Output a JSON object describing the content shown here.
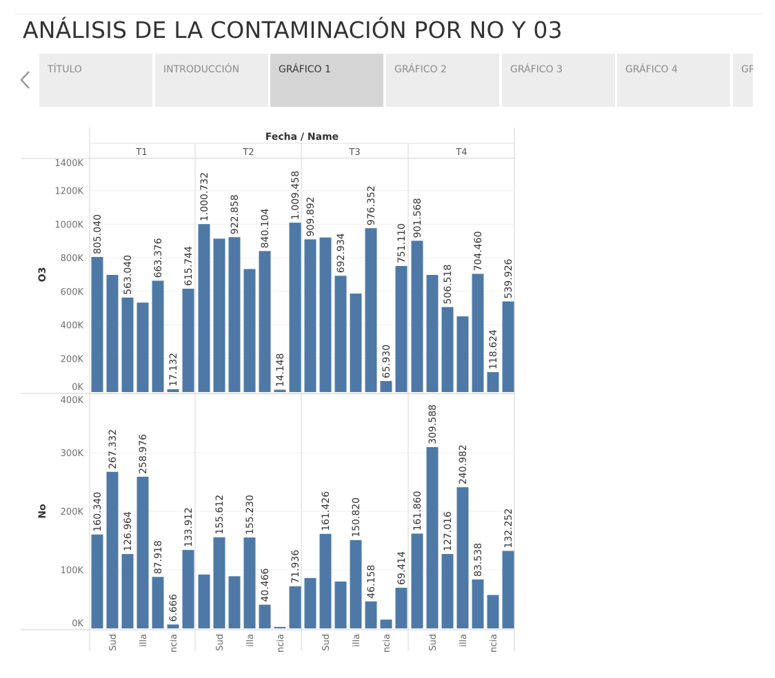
{
  "page": {
    "title": "ANÁLISIS DE LA CONTAMINACIÓN POR NO Y 03"
  },
  "nav": {
    "tabs": [
      {
        "label": "TÍTULO",
        "active": false
      },
      {
        "label": "INTRODUCCIÓN",
        "active": false
      },
      {
        "label": "GRÁFICO 1",
        "active": true
      },
      {
        "label": "GRÁFICO 2",
        "active": false
      },
      {
        "label": "GRÁFICO 3",
        "active": false
      },
      {
        "label": "GRÁFICO 4",
        "active": false
      },
      {
        "label": "GR",
        "active": false
      }
    ]
  },
  "chart_data": {
    "type": "bar",
    "column_header": "Fecha / Name",
    "columns": [
      "T1",
      "T2",
      "T3",
      "T4"
    ],
    "x_tick_labels": [
      "Sud",
      "illa",
      "ncia"
    ],
    "rows": [
      {
        "name": "O3",
        "axis_range": [
          0,
          1400000
        ],
        "ticks": [
          {
            "value": 0,
            "label": "0K"
          },
          {
            "value": 200000,
            "label": "200K"
          },
          {
            "value": 400000,
            "label": "400K"
          },
          {
            "value": 600000,
            "label": "600K"
          },
          {
            "value": 800000,
            "label": "800K"
          },
          {
            "value": 1000000,
            "label": "1000K"
          },
          {
            "value": 1200000,
            "label": "1200K"
          },
          {
            "value": 1400000,
            "label": "1400K"
          }
        ],
        "values": [
          [
            805040,
            698000,
            563040,
            533000,
            663376,
            17132,
            615744
          ],
          [
            1000732,
            914000,
            922858,
            733000,
            840104,
            14148,
            1009458
          ],
          [
            909892,
            921000,
            692934,
            587000,
            976352,
            65930,
            751110
          ],
          [
            901568,
            698000,
            506518,
            451000,
            704460,
            118624,
            539926
          ]
        ],
        "labels": [
          [
            "805.040",
            "",
            "563.040",
            "",
            "663.376",
            "17.132",
            "615.744"
          ],
          [
            "1.000.732",
            "",
            "922.858",
            "",
            "840.104",
            "14.148",
            "1.009.458"
          ],
          [
            "909.892",
            "",
            "692.934",
            "",
            "976.352",
            "65.930",
            "751.110"
          ],
          [
            "901.568",
            "",
            "506.518",
            "",
            "704.460",
            "118.624",
            "539.926"
          ]
        ]
      },
      {
        "name": "No",
        "axis_range": [
          0,
          400000
        ],
        "ticks": [
          {
            "value": 0,
            "label": "0K"
          },
          {
            "value": 100000,
            "label": "100K"
          },
          {
            "value": 200000,
            "label": "200K"
          },
          {
            "value": 300000,
            "label": "300K"
          },
          {
            "value": 400000,
            "label": "400K"
          }
        ],
        "values": [
          [
            160340,
            267332,
            126964,
            258976,
            87918,
            6666,
            133912
          ],
          [
            92000,
            155612,
            89000,
            155230,
            40466,
            2500,
            71936
          ],
          [
            86000,
            161426,
            80000,
            150820,
            46158,
            15000,
            69414
          ],
          [
            161860,
            309588,
            127016,
            240982,
            83538,
            57000,
            132252
          ]
        ],
        "labels": [
          [
            "160.340",
            "267.332",
            "126.964",
            "258.976",
            "87.918",
            "6.666",
            "133.912"
          ],
          [
            "",
            "155.612",
            "",
            "155.230",
            "40.466",
            "",
            "71.936"
          ],
          [
            "",
            "161.426",
            "",
            "150.820",
            "46.158",
            "",
            "69.414"
          ],
          [
            "161.860",
            "309.588",
            "127.016",
            "240.982",
            "83.538",
            "",
            "132.252"
          ]
        ]
      }
    ],
    "bar_color": "#4e79a7",
    "grid": true
  }
}
